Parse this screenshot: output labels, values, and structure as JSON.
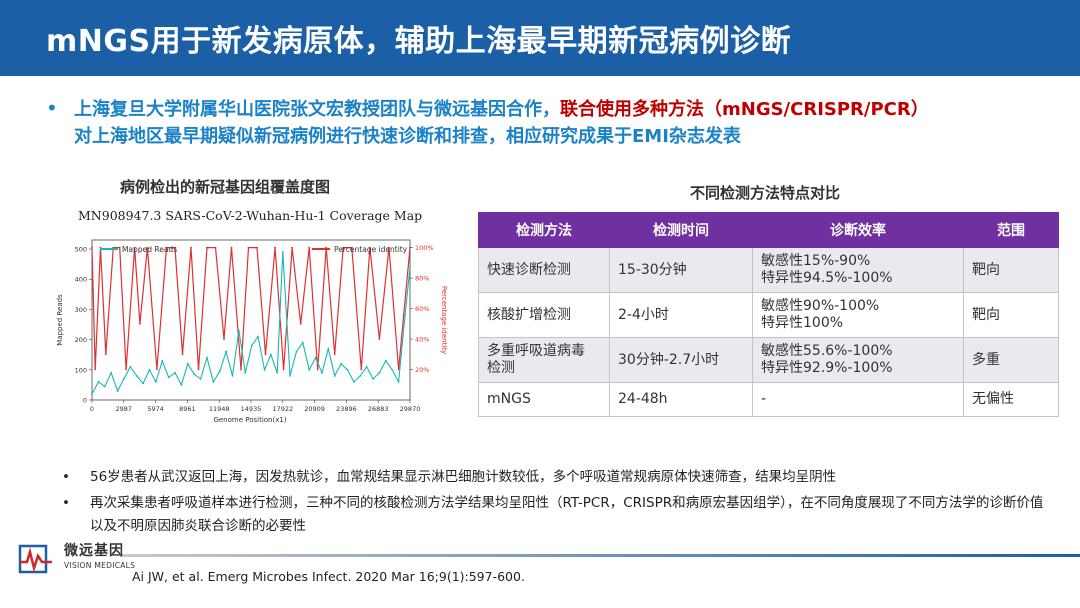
{
  "header": {
    "title": "mNGS用于新发病原体，辅助上海最早期新冠病例诊断"
  },
  "intro": {
    "part1": "上海复旦大学附属华山医院张文宏教授团队与微远基因合作，",
    "highlight": "联合使用多种方法（mNGS/CRISPR/PCR）",
    "part2": "对上海地区最早期疑似新冠病例进行快速诊断和排查，相应研究成果于EMI杂志发表"
  },
  "chart": {
    "title": "病例检出的新冠基因组覆盖度图",
    "subtitle": "MN908947.3  SARS-CoV-2-Wuhan-Hu-1 Coverage Map",
    "legend": [
      "Mapped Reads",
      "Percentage identity"
    ],
    "xlabel": "Genome Position(x1)",
    "ylabel": "Mapped Reads",
    "y2label": "Percentage identity",
    "colors": {
      "reads": "#1ab6b6",
      "identity": "#e03030"
    }
  },
  "chart_data": {
    "type": "line",
    "title": "病例检出的新冠基因组覆盖度图",
    "subtitle": "MN908947.3  SARS-CoV-2-Wuhan-Hu-1 Coverage Map",
    "xlabel": "Genome Position(x1)",
    "ylabel": "Mapped Reads",
    "y2label": "Percentage identity",
    "xlim": [
      0,
      29870
    ],
    "ylim": [
      0,
      530
    ],
    "y2lim": [
      0,
      1.05
    ],
    "x_ticks": [
      "0",
      "2987",
      "5974",
      "8961",
      "11948",
      "14935",
      "17922",
      "20909",
      "23896",
      "26883",
      "29870"
    ],
    "y_ticks": [
      "0",
      "100",
      "200",
      "300",
      "400",
      "500"
    ],
    "y2_ticks": [
      "20%",
      "40%",
      "60%",
      "80%",
      "100%"
    ],
    "series": [
      {
        "name": "Mapped Reads",
        "x": [
          0,
          600,
          1200,
          1800,
          2400,
          3000,
          3600,
          4200,
          4800,
          5400,
          6000,
          6600,
          7200,
          7800,
          8400,
          9000,
          9600,
          10200,
          10800,
          11400,
          12000,
          12600,
          13200,
          13800,
          14400,
          15000,
          15600,
          16200,
          16800,
          17400,
          17922,
          18600,
          19200,
          19800,
          20400,
          21000,
          21600,
          22200,
          22800,
          23400,
          24000,
          24600,
          25200,
          25800,
          26400,
          27000,
          27600,
          28200,
          28800,
          29400,
          29870
        ],
        "y": [
          20,
          60,
          45,
          90,
          30,
          70,
          110,
          80,
          55,
          100,
          60,
          130,
          75,
          90,
          50,
          120,
          85,
          70,
          140,
          60,
          95,
          160,
          80,
          230,
          90,
          180,
          210,
          100,
          150,
          90,
          490,
          80,
          160,
          190,
          100,
          140,
          90,
          170,
          80,
          120,
          100,
          60,
          80,
          110,
          70,
          90,
          130,
          100,
          60,
          280,
          440
        ]
      },
      {
        "name": "Percentage identity",
        "x": [
          0,
          300,
          800,
          1300,
          2000,
          2600,
          3200,
          4000,
          4500,
          5200,
          6100,
          7000,
          7800,
          8500,
          9300,
          10000,
          10800,
          11600,
          12400,
          13100,
          14000,
          14700,
          15500,
          16300,
          17200,
          18000,
          18800,
          19600,
          20400,
          21200,
          22000,
          22800,
          23600,
          24400,
          25300,
          26100,
          27000,
          27900,
          28800,
          29870
        ],
        "y": [
          1.0,
          0.2,
          1.0,
          0.3,
          1.0,
          1.0,
          0.2,
          1.0,
          0.5,
          1.0,
          0.2,
          1.0,
          1.0,
          0.3,
          1.0,
          0.2,
          1.0,
          1.0,
          0.4,
          1.0,
          0.2,
          1.0,
          1.0,
          0.3,
          1.0,
          0.2,
          1.0,
          0.5,
          1.0,
          0.2,
          1.0,
          0.3,
          1.0,
          1.0,
          0.2,
          1.0,
          0.4,
          1.0,
          0.2,
          1.0
        ]
      }
    ]
  },
  "table": {
    "title": "不同检测方法特点对比",
    "headers": [
      "检测方法",
      "检测时间",
      "诊断效率",
      "范围"
    ],
    "rows": [
      {
        "method": "快速诊断检测",
        "time": "15-30分钟",
        "eff1": "敏感性15%-90%",
        "eff2": "特异性94.5%-100%",
        "scope": "靶向"
      },
      {
        "method": "核酸扩增检测",
        "time": "2-4小时",
        "eff1": "敏感性90%-100%",
        "eff2": "特异性100%",
        "scope": "靶向"
      },
      {
        "method1": "多重呼吸道病毒",
        "method2": "检测",
        "time": "30分钟-2.7小时",
        "eff1": "敏感性55.6%-100%",
        "eff2": "特异性92.9%-100%",
        "scope": "多重"
      },
      {
        "method": "mNGS",
        "time": "24-48h",
        "eff1": "-",
        "scope": "无偏性"
      }
    ]
  },
  "notes": [
    "56岁患者从武汉返回上海，因发热就诊，血常规结果显示淋巴细胞计数较低，多个呼吸道常规病原体快速筛查，结果均呈阴性",
    "再次采集患者呼吸道样本进行检测，三种不同的核酸检测方法学结果均呈阳性（RT-PCR，CRISPR和病原宏基因组学），在不同角度展现了不同方法学的诊断价值以及不明原因肺炎联合诊断的必要性"
  ],
  "logo": {
    "cn": "微远基因",
    "en": "VISION MEDICALS"
  },
  "citation": "Ai JW, et al. Emerg Microbes Infect. 2020 Mar 16;9(1):597-600.",
  "bullet_symbol": "•"
}
